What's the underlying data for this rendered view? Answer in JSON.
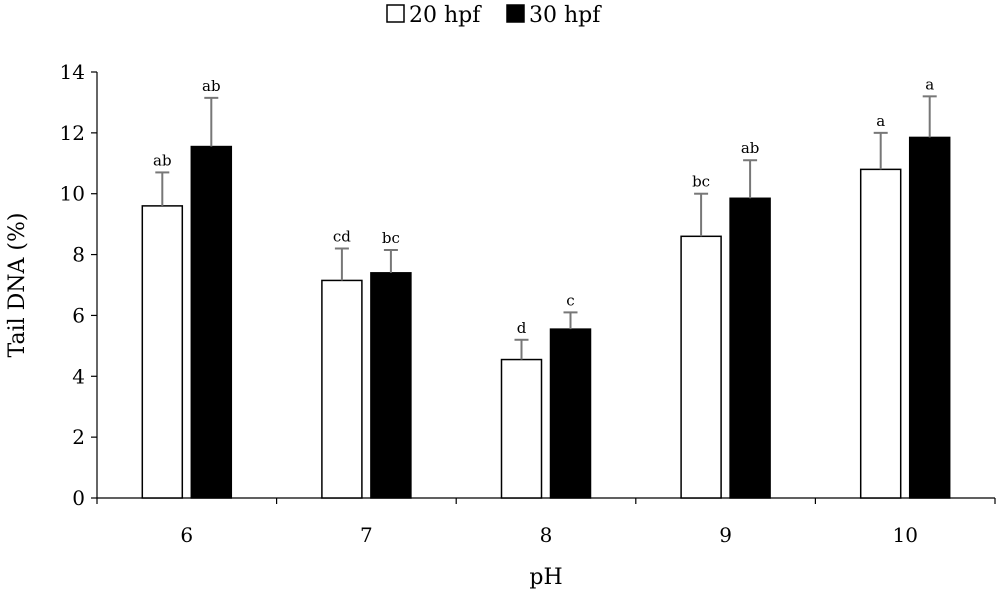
{
  "chart_data": {
    "type": "bar",
    "title": "",
    "xlabel": "pH",
    "ylabel": "Tail DNA (%)",
    "ylim": [
      0,
      14
    ],
    "yticks": [
      "0",
      "2",
      "4",
      "6",
      "8",
      "10",
      "12",
      "14"
    ],
    "categories": [
      "6",
      "7",
      "8",
      "9",
      "10"
    ],
    "legend_position": "top-center",
    "series": [
      {
        "name": "20 hpf",
        "color": "#ffffff",
        "values": [
          9.6,
          7.15,
          4.55,
          8.6,
          10.8
        ],
        "errors": [
          1.1,
          1.05,
          0.65,
          1.4,
          1.2
        ],
        "labels": [
          "ab",
          "cd",
          "d",
          "bc",
          "a"
        ]
      },
      {
        "name": "30 hpf",
        "color": "#000000",
        "values": [
          11.55,
          7.4,
          5.55,
          9.85,
          11.85
        ],
        "errors": [
          1.6,
          0.75,
          0.55,
          1.25,
          1.35
        ],
        "labels": [
          "ab",
          "bc",
          "c",
          "ab",
          "a"
        ]
      }
    ]
  }
}
